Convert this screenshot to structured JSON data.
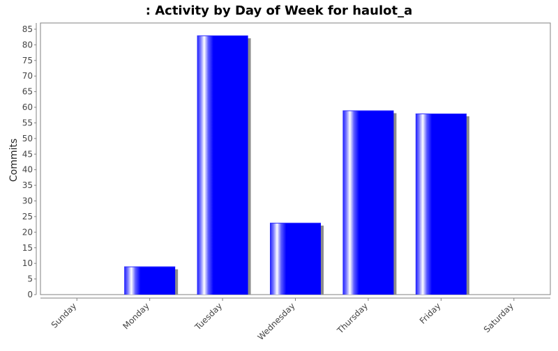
{
  "chart_data": {
    "type": "bar",
    "title": ": Activity by Day of Week for haulot_a",
    "xlabel": "",
    "ylabel": "Commits",
    "categories": [
      "Sunday",
      "Monday",
      "Tuesday",
      "Wednesday",
      "Thursday",
      "Friday",
      "Saturday"
    ],
    "values": [
      0,
      9,
      83,
      23,
      59,
      58,
      0
    ],
    "ylim": [
      0,
      87
    ],
    "yticks": [
      0,
      5,
      10,
      15,
      20,
      25,
      30,
      35,
      40,
      45,
      50,
      55,
      60,
      65,
      70,
      75,
      80,
      85
    ],
    "grid": false,
    "legend": "none",
    "colors": {
      "bar": "#0000ff",
      "bar_highlight": "#ffffff",
      "bar_shadow": "#8c8c8c",
      "plot_border": "#808080",
      "text": "#444444",
      "title": "#000000"
    }
  }
}
